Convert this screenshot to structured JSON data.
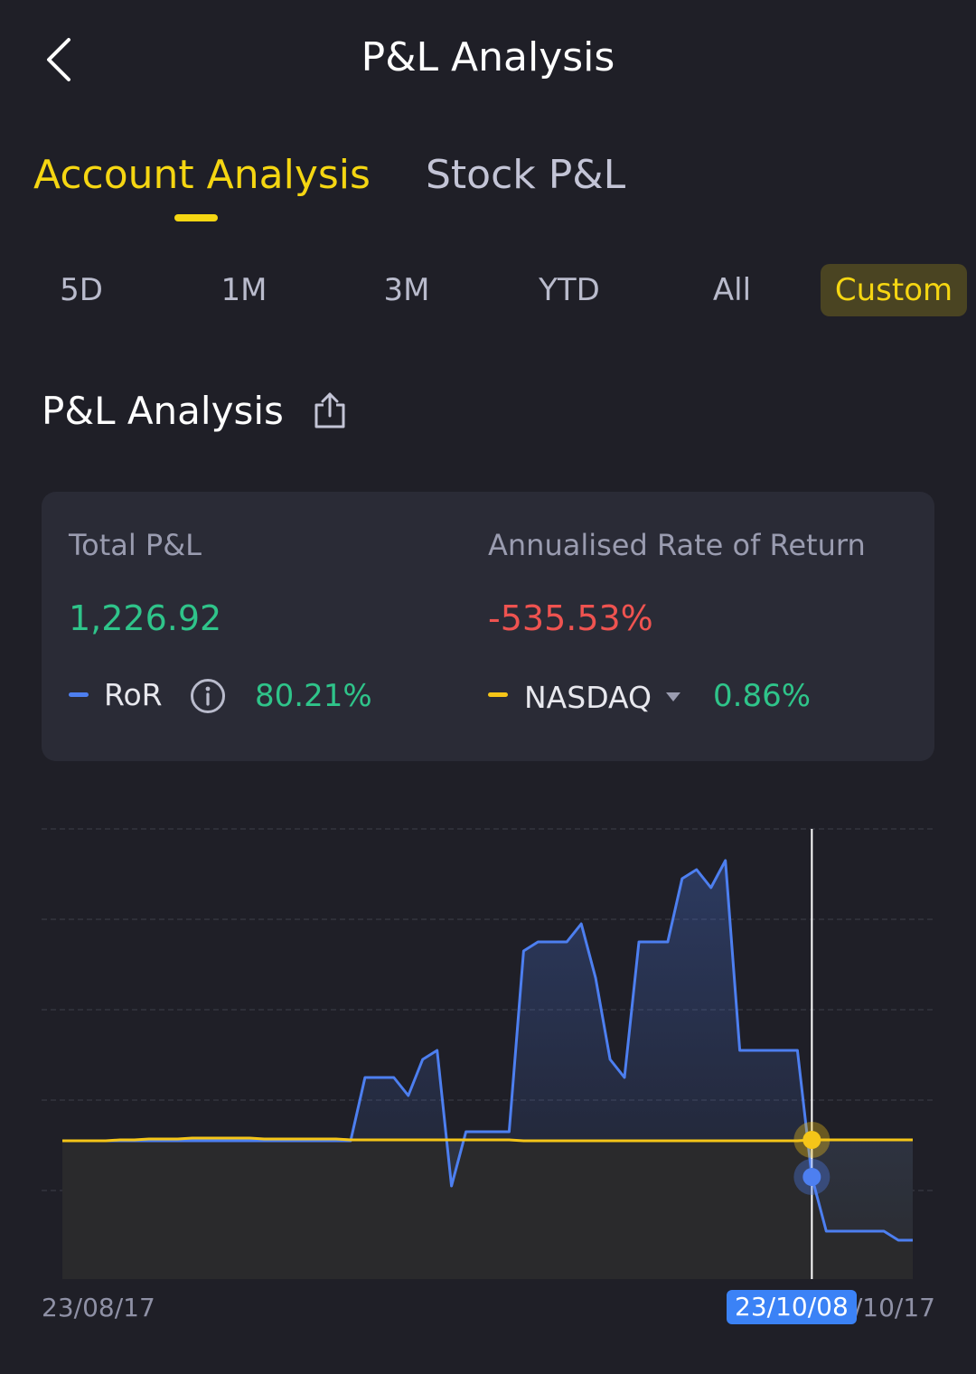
{
  "header": {
    "title": "P&L Analysis",
    "back_icon": "chevron-left-icon"
  },
  "main_tabs": [
    {
      "label": "Account Analysis",
      "active": true
    },
    {
      "label": "Stock P&L",
      "active": false
    }
  ],
  "range_tabs": [
    {
      "label": "5D",
      "active": false
    },
    {
      "label": "1M",
      "active": false
    },
    {
      "label": "3M",
      "active": false
    },
    {
      "label": "YTD",
      "active": false
    },
    {
      "label": "All",
      "active": false
    },
    {
      "label": "Custom",
      "active": true
    }
  ],
  "section": {
    "title": "P&L Analysis",
    "share_icon": "share-icon"
  },
  "summary": {
    "total_pl_label": "Total P&L",
    "total_pl_value": "1,226.92",
    "annualised_label": "Annualised Rate of Return",
    "annualised_value": "-535.53%",
    "ror_label": "RoR",
    "ror_value": "80.21%",
    "benchmark_label": "NASDAQ",
    "benchmark_value": "0.86%"
  },
  "colors": {
    "accent": "#f5d612",
    "ror_line": "#4d7ff0",
    "benchmark_line": "#f5c518",
    "positive": "#2fc48a",
    "negative": "#ef5350",
    "background": "#1f1f27",
    "card": "#2a2b36"
  },
  "chart_data": {
    "type": "line",
    "x_start_label": "23/08/17",
    "x_end_label": "23/10/17",
    "crosshair_label": "23/10/08",
    "crosshair_index": 52,
    "grid": true,
    "series": [
      {
        "name": "RoR",
        "values": [
          0,
          0,
          0,
          0,
          0,
          0,
          0,
          0,
          0,
          0,
          0,
          0,
          0,
          0,
          0,
          0,
          0,
          0,
          0,
          0,
          0,
          7,
          7,
          7,
          5,
          9,
          10,
          -5,
          1,
          1,
          1,
          1,
          21,
          22,
          22,
          22,
          24,
          18,
          9,
          7,
          22,
          22,
          22,
          29,
          30,
          28,
          31,
          10,
          10,
          10,
          10,
          10,
          -4,
          -10,
          -10,
          -10,
          -10,
          -10,
          -11,
          -11
        ]
      },
      {
        "name": "NASDAQ",
        "values": [
          0,
          0,
          0,
          0,
          0.1,
          0.1,
          0.2,
          0.2,
          0.2,
          0.3,
          0.3,
          0.3,
          0.3,
          0.3,
          0.2,
          0.2,
          0.2,
          0.2,
          0.2,
          0.2,
          0.1,
          0.1,
          0.1,
          0.1,
          0.1,
          0.1,
          0.1,
          0.1,
          0.1,
          0.1,
          0.1,
          0.1,
          0,
          0,
          0,
          0,
          0,
          0,
          0,
          0,
          0,
          0,
          0,
          0,
          0,
          0,
          0,
          0,
          0,
          0,
          0,
          0,
          0.1,
          0.1,
          0.1,
          0.1,
          0.1,
          0.1,
          0.1,
          0.1
        ]
      }
    ]
  }
}
